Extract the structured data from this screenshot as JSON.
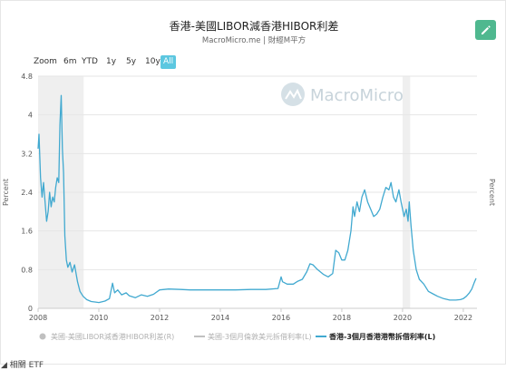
{
  "header": {
    "title": "香港-美國LIBOR減香港HIBOR利差",
    "subtitle": "MacroMicro.me | 財經M平方"
  },
  "zoom": {
    "label": "Zoom",
    "buttons": [
      "6m",
      "YTD",
      "1y",
      "5y",
      "10y",
      "All"
    ],
    "active": "All"
  },
  "watermark": "MacroMicro",
  "colors": {
    "line": "#41a9d0",
    "edit_button": "#4fb88f",
    "active_zoom": "#5cc7e0",
    "recession_band": "#efefef",
    "legend_disabled": "#c0c0c0"
  },
  "footer": "◢ 相關 ETF",
  "chart_data": {
    "type": "line",
    "title": "香港-美國LIBOR減香港HIBOR利差",
    "ylabel": "Percent",
    "ylabel_right": "Percent",
    "ylim": [
      0,
      4.8
    ],
    "xlim": [
      2008,
      2022.45
    ],
    "x_ticks": [
      "2008",
      "2010",
      "2012",
      "2014",
      "2016",
      "2018",
      "2020",
      "2022"
    ],
    "y_ticks": [
      "0",
      "0.8",
      "1.6",
      "2.4",
      "3.2",
      "4",
      "4.8"
    ],
    "grid": true,
    "legend_position": "bottom",
    "shaded_periods": [
      [
        2008.0,
        2009.5
      ],
      [
        2020.0,
        2020.25
      ]
    ],
    "series": [
      {
        "name": "美國-美國LIBOR減香港HIBOR利差(R)",
        "color": "#c0c0c0",
        "visible": false
      },
      {
        "name": "美國-3個月倫敦美元拆借利率(L)",
        "color": "#c0c0c0",
        "visible": false
      },
      {
        "name": "香港-3個月香港港幣拆借利率(L)",
        "color": "#41a9d0",
        "visible": true,
        "points": [
          [
            2008.0,
            3.3
          ],
          [
            2008.03,
            3.6
          ],
          [
            2008.08,
            2.7
          ],
          [
            2008.13,
            2.3
          ],
          [
            2008.18,
            2.6
          ],
          [
            2008.23,
            2.2
          ],
          [
            2008.28,
            1.8
          ],
          [
            2008.33,
            2.0
          ],
          [
            2008.38,
            2.4
          ],
          [
            2008.43,
            2.1
          ],
          [
            2008.48,
            2.3
          ],
          [
            2008.53,
            2.2
          ],
          [
            2008.58,
            2.5
          ],
          [
            2008.63,
            2.7
          ],
          [
            2008.68,
            2.6
          ],
          [
            2008.72,
            3.8
          ],
          [
            2008.76,
            4.4
          ],
          [
            2008.8,
            3.3
          ],
          [
            2008.84,
            2.8
          ],
          [
            2008.88,
            1.5
          ],
          [
            2008.93,
            1.0
          ],
          [
            2008.98,
            0.85
          ],
          [
            2009.05,
            0.95
          ],
          [
            2009.12,
            0.75
          ],
          [
            2009.2,
            0.9
          ],
          [
            2009.3,
            0.55
          ],
          [
            2009.38,
            0.35
          ],
          [
            2009.48,
            0.25
          ],
          [
            2009.6,
            0.18
          ],
          [
            2009.75,
            0.14
          ],
          [
            2009.9,
            0.13
          ],
          [
            2010.0,
            0.12
          ],
          [
            2010.2,
            0.15
          ],
          [
            2010.35,
            0.2
          ],
          [
            2010.45,
            0.52
          ],
          [
            2010.52,
            0.32
          ],
          [
            2010.62,
            0.38
          ],
          [
            2010.75,
            0.28
          ],
          [
            2010.9,
            0.32
          ],
          [
            2011.0,
            0.26
          ],
          [
            2011.2,
            0.22
          ],
          [
            2011.4,
            0.28
          ],
          [
            2011.6,
            0.25
          ],
          [
            2011.8,
            0.29
          ],
          [
            2012.0,
            0.38
          ],
          [
            2012.3,
            0.4
          ],
          [
            2012.7,
            0.39
          ],
          [
            2013.0,
            0.38
          ],
          [
            2013.5,
            0.38
          ],
          [
            2014.0,
            0.38
          ],
          [
            2014.5,
            0.38
          ],
          [
            2015.0,
            0.39
          ],
          [
            2015.5,
            0.39
          ],
          [
            2015.9,
            0.41
          ],
          [
            2016.0,
            0.65
          ],
          [
            2016.05,
            0.55
          ],
          [
            2016.2,
            0.5
          ],
          [
            2016.4,
            0.5
          ],
          [
            2016.55,
            0.56
          ],
          [
            2016.7,
            0.6
          ],
          [
            2016.85,
            0.76
          ],
          [
            2016.95,
            0.92
          ],
          [
            2017.05,
            0.9
          ],
          [
            2017.2,
            0.8
          ],
          [
            2017.4,
            0.7
          ],
          [
            2017.55,
            0.65
          ],
          [
            2017.7,
            0.72
          ],
          [
            2017.8,
            1.2
          ],
          [
            2017.9,
            1.15
          ],
          [
            2018.0,
            1.0
          ],
          [
            2018.1,
            1.0
          ],
          [
            2018.2,
            1.2
          ],
          [
            2018.3,
            1.6
          ],
          [
            2018.37,
            2.1
          ],
          [
            2018.42,
            1.9
          ],
          [
            2018.5,
            2.2
          ],
          [
            2018.58,
            2.0
          ],
          [
            2018.66,
            2.3
          ],
          [
            2018.75,
            2.45
          ],
          [
            2018.85,
            2.2
          ],
          [
            2018.95,
            2.05
          ],
          [
            2019.05,
            1.9
          ],
          [
            2019.15,
            1.95
          ],
          [
            2019.25,
            2.05
          ],
          [
            2019.35,
            2.3
          ],
          [
            2019.45,
            2.5
          ],
          [
            2019.55,
            2.45
          ],
          [
            2019.62,
            2.6
          ],
          [
            2019.7,
            2.3
          ],
          [
            2019.78,
            2.2
          ],
          [
            2019.88,
            2.45
          ],
          [
            2019.95,
            2.2
          ],
          [
            2020.05,
            1.9
          ],
          [
            2020.12,
            2.05
          ],
          [
            2020.18,
            1.8
          ],
          [
            2020.22,
            2.2
          ],
          [
            2020.28,
            1.7
          ],
          [
            2020.35,
            1.2
          ],
          [
            2020.45,
            0.8
          ],
          [
            2020.55,
            0.6
          ],
          [
            2020.7,
            0.5
          ],
          [
            2020.85,
            0.35
          ],
          [
            2021.0,
            0.3
          ],
          [
            2021.15,
            0.25
          ],
          [
            2021.35,
            0.2
          ],
          [
            2021.55,
            0.17
          ],
          [
            2021.75,
            0.17
          ],
          [
            2021.9,
            0.18
          ],
          [
            2022.0,
            0.2
          ],
          [
            2022.1,
            0.25
          ],
          [
            2022.2,
            0.32
          ],
          [
            2022.28,
            0.4
          ],
          [
            2022.35,
            0.52
          ],
          [
            2022.42,
            0.62
          ]
        ]
      }
    ]
  }
}
